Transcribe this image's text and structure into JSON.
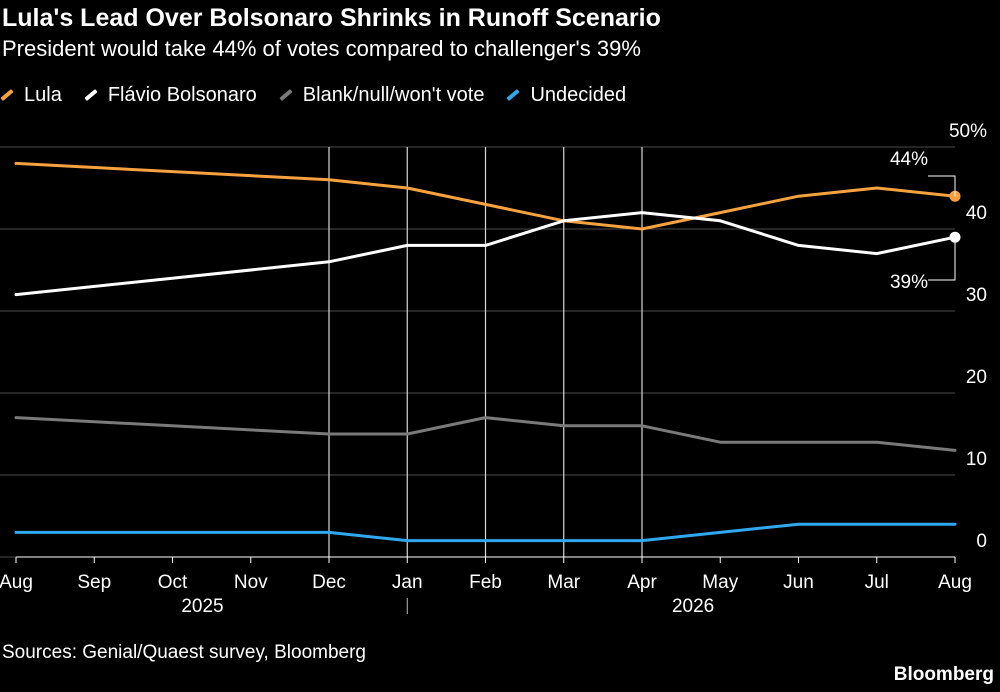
{
  "title": "Lula's Lead Over Bolsonaro Shrinks in Runoff Scenario",
  "subtitle": "President would take 44% of votes compared to challenger's 39%",
  "source": "Sources: Genial/Quaest survey, Bloomberg",
  "brand": "Bloomberg",
  "chart_data": {
    "type": "line",
    "x": [
      "Aug",
      "Sep",
      "Oct",
      "Nov",
      "Dec",
      "Jan",
      "Feb",
      "Mar",
      "Apr",
      "May",
      "Jun",
      "Jul",
      "Aug"
    ],
    "year_labels": [
      "2025",
      "2026"
    ],
    "ylim": [
      0,
      50
    ],
    "yticks": [
      "0",
      "10",
      "20",
      "30",
      "40",
      "50%"
    ],
    "grid": true,
    "legend_position": "top-left",
    "series": [
      {
        "name": "Lula",
        "color": "#f7a23e",
        "points": [
          [
            "Aug 2025",
            48
          ],
          [
            "Dec 2025",
            46
          ],
          [
            "Jan 2026",
            45
          ],
          [
            "Feb 2026",
            43
          ],
          [
            "Mar 2026",
            41
          ],
          [
            "Apr 2026",
            40
          ],
          [
            "May 2026",
            42
          ],
          [
            "Jun 2026",
            44
          ],
          [
            "Jul 2026",
            45
          ],
          [
            "Aug 2026",
            44
          ]
        ]
      },
      {
        "name": "Flávio Bolsonaro",
        "color": "#ffffff",
        "points": [
          [
            "Aug 2025",
            32
          ],
          [
            "Dec 2025",
            36
          ],
          [
            "Jan 2026",
            38
          ],
          [
            "Feb 2026",
            38
          ],
          [
            "Mar 2026",
            41
          ],
          [
            "Apr 2026",
            42
          ],
          [
            "May 2026",
            41
          ],
          [
            "Jun 2026",
            38
          ],
          [
            "Jul 2026",
            37
          ],
          [
            "Aug 2026",
            39
          ]
        ]
      },
      {
        "name": "Blank/null/won't vote",
        "color": "#7a7a7a",
        "points": [
          [
            "Aug 2025",
            17
          ],
          [
            "Dec 2025",
            15
          ],
          [
            "Jan 2026",
            15
          ],
          [
            "Feb 2026",
            17
          ],
          [
            "Mar 2026",
            16
          ],
          [
            "Apr 2026",
            16
          ],
          [
            "May 2026",
            14
          ],
          [
            "Jun 2026",
            14
          ],
          [
            "Jul 2026",
            14
          ],
          [
            "Aug 2026",
            13
          ]
        ]
      },
      {
        "name": "Undecided",
        "color": "#2fa8f0",
        "points": [
          [
            "Aug 2025",
            3
          ],
          [
            "Dec 2025",
            3
          ],
          [
            "Jan 2026",
            2
          ],
          [
            "Feb 2026",
            2
          ],
          [
            "Mar 2026",
            2
          ],
          [
            "Apr 2026",
            2
          ],
          [
            "May 2026",
            3
          ],
          [
            "Jun 2026",
            4
          ],
          [
            "Jul 2026",
            4
          ],
          [
            "Aug 2026",
            4
          ]
        ]
      }
    ],
    "survey_dates": [
      "Dec 2025",
      "Jan 2026",
      "Feb 2026",
      "Mar 2026",
      "Apr 2026"
    ],
    "annotations": [
      {
        "series": "Lula",
        "text": "44%"
      },
      {
        "series": "Flávio Bolsonaro",
        "text": "39%"
      }
    ]
  }
}
